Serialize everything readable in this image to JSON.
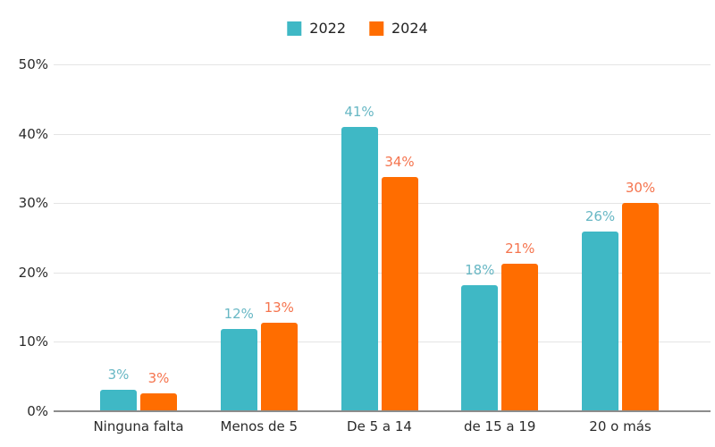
{
  "chart_data": {
    "type": "bar",
    "title": "",
    "xlabel": "",
    "ylabel": "",
    "categories": [
      "Ninguna falta",
      "Menos de 5",
      "De 5 a 14",
      "de 15 a 19",
      "20 o más"
    ],
    "series": [
      {
        "name": "2022",
        "color": "#3FB8C5",
        "label_color": "#67B7C4",
        "values": [
          3,
          12,
          41,
          18,
          26
        ],
        "value_labels": [
          "3%",
          "12%",
          "41%",
          "18%",
          "26%"
        ],
        "bar_heights_pct": [
          3.1,
          11.9,
          41.0,
          18.2,
          25.9
        ]
      },
      {
        "name": "2024",
        "color": "#FF6D00",
        "label_color": "#F5744E",
        "values": [
          3,
          13,
          34,
          21,
          30
        ],
        "value_labels": [
          "3%",
          "13%",
          "34%",
          "21%",
          "30%"
        ],
        "bar_heights_pct": [
          2.6,
          12.7,
          33.7,
          21.2,
          30.0
        ]
      }
    ],
    "ylim": [
      0,
      50
    ],
    "yticks": [
      {
        "value": 0,
        "label": "0%"
      },
      {
        "value": 10,
        "label": "10%"
      },
      {
        "value": 20,
        "label": "20%"
      },
      {
        "value": 30,
        "label": "30%"
      },
      {
        "value": 40,
        "label": "40%"
      },
      {
        "value": 50,
        "label": "50%"
      }
    ],
    "grid": true,
    "legend_position": "top"
  },
  "colors": {
    "background": "#ffffff",
    "gridline": "#e4e4e4",
    "axis_line": "#8c8c8c",
    "tick_text": "#2b2b2b"
  }
}
